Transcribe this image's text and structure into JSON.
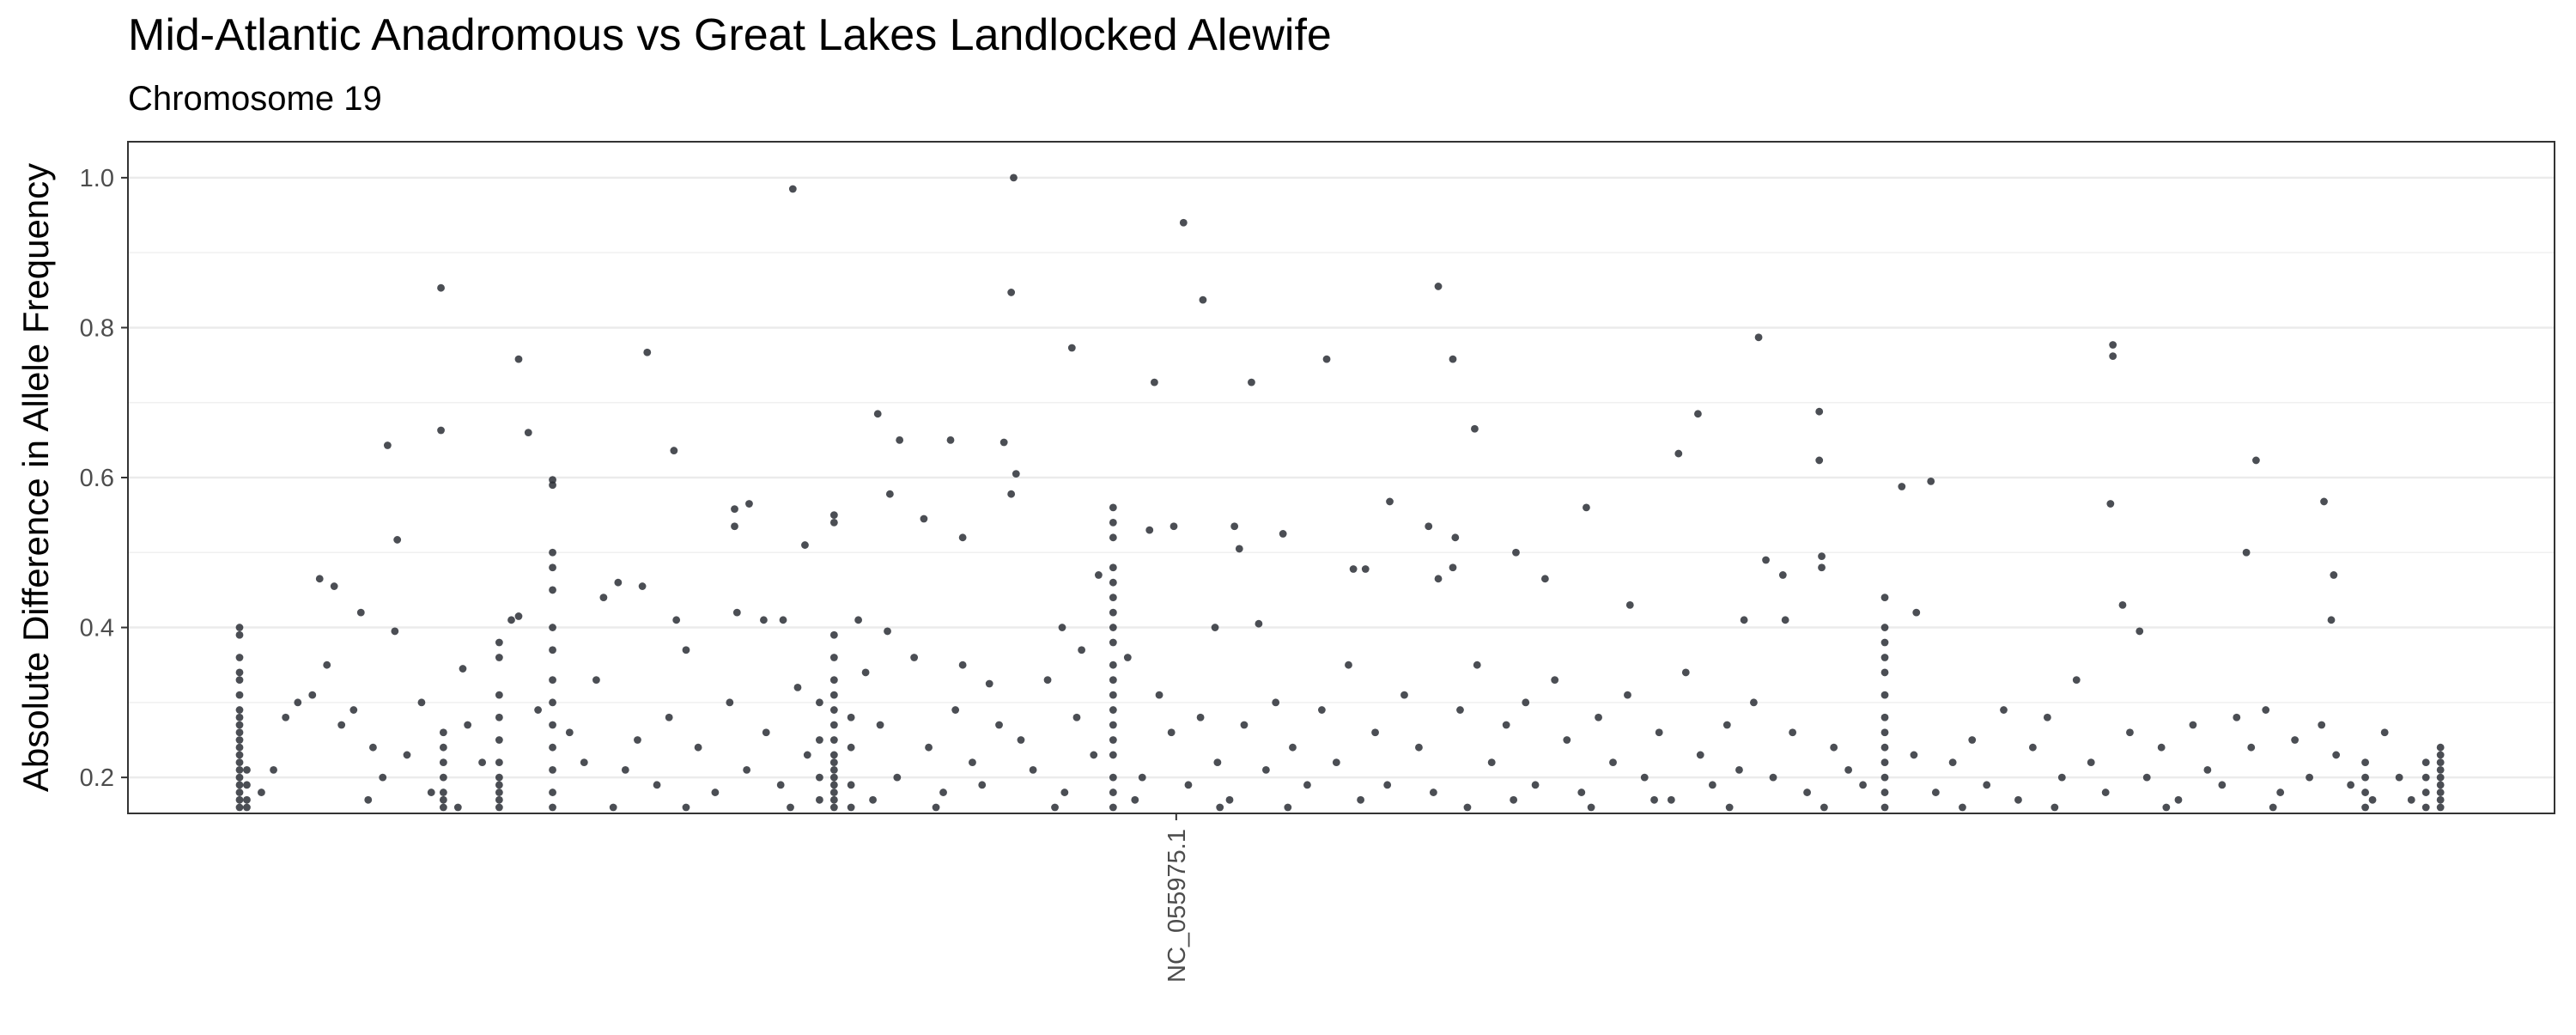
{
  "chart_data": {
    "type": "scatter",
    "title": "Mid-Atlantic Anadromous vs Great Lakes Landlocked Alewife",
    "subtitle": "Chromosome 19",
    "y_label": "Absolute Difference in Allele Frequency",
    "color": "#2b2f36",
    "grid": true,
    "minor_grid": true,
    "xlim": [
      0,
      100
    ],
    "xticks": [
      {
        "value": 43.2,
        "label": "NC_055975.1"
      }
    ],
    "ylim": [
      0.152,
      1.048
    ],
    "yticks": [
      0.2,
      0.4,
      0.6,
      0.8,
      {
        "value": 1,
        "label": "1.0"
      }
    ],
    "x": [
      4.6,
      4.6,
      4.6,
      4.6,
      4.6,
      4.6,
      4.6,
      4.6,
      4.6,
      4.6,
      4.6,
      4.6,
      4.6,
      4.6,
      4.6,
      4.6,
      4.6,
      4.6,
      4.6,
      4.6,
      4.9,
      4.9,
      4.9,
      4.9,
      13.0,
      13.0,
      13.0,
      13.0,
      13.0,
      13.0,
      13.0,
      15.3,
      15.3,
      15.3,
      15.3,
      15.3,
      15.3,
      15.3,
      15.3,
      15.3,
      15.3,
      15.3,
      17.5,
      17.5,
      17.5,
      17.5,
      17.5,
      17.5,
      17.5,
      17.5,
      17.5,
      17.5,
      17.5,
      17.5,
      29.1,
      29.1,
      29.1,
      29.1,
      29.1,
      29.1,
      29.1,
      29.1,
      29.1,
      29.1,
      29.1,
      29.1,
      29.1,
      29.1,
      29.1,
      28.5,
      28.5,
      28.5,
      28.5,
      29.8,
      29.8,
      29.8,
      29.8,
      40.6,
      40.6,
      40.6,
      40.6,
      40.6,
      40.6,
      40.6,
      40.6,
      40.6,
      40.6,
      40.6,
      40.6,
      40.6,
      40.6,
      40.6,
      40.6,
      40.6,
      40.6,
      40.6,
      72.4,
      72.4,
      72.4,
      72.4,
      72.4,
      72.4,
      72.4,
      72.4,
      72.4,
      72.4,
      72.4,
      72.4,
      72.4,
      92.2,
      92.2,
      92.2,
      92.2,
      95.3,
      95.3,
      95.3,
      95.3,
      95.3,
      95.3,
      95.3,
      95.3,
      95.3,
      94.7,
      94.7,
      94.7,
      94.7,
      36.5,
      27.4,
      43.5,
      12.9,
      36.4,
      54.0,
      44.3,
      67.2,
      81.8,
      81.8,
      38.9,
      21.4,
      16.1,
      49.4,
      54.6,
      42.3,
      46.3,
      69.7,
      30.9,
      64.7,
      55.5,
      12.9,
      16.5,
      31.8,
      33.9,
      36.1,
      10.7,
      22.5,
      63.9,
      87.7,
      69.7,
      36.6,
      17.5,
      17.5,
      74.3,
      73.1,
      36.4,
      31.4,
      90.5,
      52.0,
      81.7,
      25.6,
      60.1,
      25.0,
      25.0,
      29.1,
      29.1,
      32.8,
      11.1,
      27.9,
      47.6,
      90.9,
      87.3,
      57.2,
      58.4,
      7.9,
      8.5,
      34.4,
      45.6,
      45.8,
      43.1,
      42.1,
      50.5,
      51.0,
      53.6,
      54.7,
      54.6,
      54.0,
      67.5,
      68.2,
      69.8,
      69.8,
      73.7,
      82.9,
      90.8,
      82.2,
      61.9,
      66.6,
      68.3,
      16.1,
      15.8,
      21.2,
      22.6,
      20.2,
      19.6,
      13.8,
      9.6,
      11.0,
      40.0,
      35.5,
      39.3,
      44.8,
      46.6,
      30.1,
      31.3,
      26.2,
      27.0,
      25.1,
      23.0,
      34.4,
      38.5,
      6.5,
      7.0,
      7.6,
      8.2,
      8.8,
      9.3,
      10.1,
      10.5,
      11.5,
      12.1,
      14.0,
      14.6,
      16.9,
      18.2,
      18.8,
      19.3,
      20.5,
      21.0,
      21.8,
      22.3,
      23.5,
      24.2,
      24.8,
      25.5,
      26.3,
      26.9,
      27.6,
      28.0,
      30.4,
      31.0,
      31.7,
      32.4,
      33.0,
      33.6,
      34.1,
      34.8,
      35.2,
      35.9,
      36.8,
      37.3,
      37.9,
      38.6,
      39.1,
      39.8,
      41.2,
      41.8,
      42.5,
      43.0,
      43.7,
      44.2,
      44.9,
      45.4,
      46.0,
      46.9,
      47.3,
      48.0,
      48.6,
      49.2,
      49.8,
      50.3,
      51.4,
      51.9,
      52.6,
      53.2,
      53.8,
      54.9,
      55.6,
      56.2,
      56.8,
      57.6,
      58.0,
      58.8,
      59.3,
      59.9,
      60.6,
      61.2,
      61.8,
      62.5,
      63.1,
      63.6,
      64.2,
      64.8,
      65.3,
      65.9,
      66.4,
      67.0,
      67.8,
      68.6,
      69.2,
      70.3,
      70.9,
      71.5,
      73.6,
      74.5,
      75.2,
      76.0,
      76.6,
      77.3,
      77.9,
      78.5,
      79.1,
      79.7,
      80.3,
      80.9,
      81.5,
      82.5,
      83.2,
      83.8,
      84.5,
      85.1,
      85.7,
      86.3,
      86.9,
      87.5,
      88.1,
      88.7,
      89.3,
      89.9,
      90.4,
      91.0,
      91.6,
      93.0,
      93.6,
      94.1,
      5.5,
      6.0,
      9.9,
      12.5,
      13.6,
      20.0,
      23.0,
      27.3,
      30.7,
      33.3,
      38.2,
      41.5,
      45.0,
      47.8,
      50.8,
      55.2,
      57.1,
      60.3,
      62.9,
      66.0,
      69.9,
      75.6,
      79.4,
      84.0,
      88.4,
      92.5
    ],
    "values": [
      0.4,
      0.39,
      0.36,
      0.34,
      0.33,
      0.31,
      0.29,
      0.28,
      0.27,
      0.26,
      0.25,
      0.24,
      0.23,
      0.22,
      0.21,
      0.2,
      0.19,
      0.18,
      0.17,
      0.16,
      0.21,
      0.19,
      0.17,
      0.16,
      0.26,
      0.24,
      0.22,
      0.2,
      0.18,
      0.17,
      0.16,
      0.38,
      0.36,
      0.31,
      0.28,
      0.25,
      0.22,
      0.2,
      0.19,
      0.18,
      0.17,
      0.16,
      0.5,
      0.48,
      0.45,
      0.4,
      0.37,
      0.33,
      0.3,
      0.27,
      0.24,
      0.21,
      0.18,
      0.16,
      0.39,
      0.36,
      0.33,
      0.31,
      0.29,
      0.27,
      0.25,
      0.23,
      0.22,
      0.21,
      0.2,
      0.19,
      0.18,
      0.17,
      0.16,
      0.3,
      0.25,
      0.2,
      0.17,
      0.28,
      0.24,
      0.19,
      0.16,
      0.56,
      0.54,
      0.52,
      0.48,
      0.46,
      0.44,
      0.42,
      0.4,
      0.38,
      0.35,
      0.33,
      0.31,
      0.29,
      0.27,
      0.25,
      0.23,
      0.2,
      0.18,
      0.16,
      0.44,
      0.4,
      0.38,
      0.36,
      0.34,
      0.31,
      0.28,
      0.26,
      0.24,
      0.22,
      0.2,
      0.18,
      0.16,
      0.22,
      0.2,
      0.18,
      0.16,
      0.24,
      0.23,
      0.22,
      0.21,
      0.2,
      0.19,
      0.18,
      0.17,
      0.16,
      0.22,
      0.2,
      0.18,
      0.16,
      1.0,
      0.985,
      0.94,
      0.853,
      0.847,
      0.855,
      0.837,
      0.787,
      0.777,
      0.762,
      0.773,
      0.767,
      0.758,
      0.758,
      0.758,
      0.727,
      0.727,
      0.688,
      0.685,
      0.685,
      0.665,
      0.663,
      0.66,
      0.65,
      0.65,
      0.647,
      0.643,
      0.636,
      0.632,
      0.623,
      0.623,
      0.605,
      0.597,
      0.59,
      0.595,
      0.588,
      0.578,
      0.578,
      0.568,
      0.568,
      0.565,
      0.565,
      0.56,
      0.558,
      0.535,
      0.55,
      0.54,
      0.545,
      0.517,
      0.51,
      0.525,
      0.47,
      0.5,
      0.5,
      0.465,
      0.465,
      0.455,
      0.52,
      0.535,
      0.505,
      0.535,
      0.53,
      0.478,
      0.478,
      0.535,
      0.52,
      0.48,
      0.465,
      0.49,
      0.47,
      0.495,
      0.48,
      0.42,
      0.395,
      0.41,
      0.43,
      0.43,
      0.41,
      0.41,
      0.415,
      0.41,
      0.455,
      0.41,
      0.46,
      0.44,
      0.345,
      0.42,
      0.395,
      0.47,
      0.325,
      0.37,
      0.4,
      0.405,
      0.41,
      0.395,
      0.41,
      0.41,
      0.42,
      0.37,
      0.35,
      0.4,
      0.28,
      0.3,
      0.31,
      0.35,
      0.27,
      0.29,
      0.24,
      0.2,
      0.23,
      0.3,
      0.27,
      0.22,
      0.29,
      0.26,
      0.22,
      0.33,
      0.21,
      0.25,
      0.19,
      0.28,
      0.24,
      0.18,
      0.3,
      0.21,
      0.26,
      0.19,
      0.32,
      0.23,
      0.34,
      0.27,
      0.2,
      0.36,
      0.24,
      0.18,
      0.29,
      0.22,
      0.19,
      0.27,
      0.25,
      0.21,
      0.33,
      0.18,
      0.28,
      0.23,
      0.36,
      0.2,
      0.31,
      0.26,
      0.19,
      0.28,
      0.22,
      0.17,
      0.27,
      0.21,
      0.3,
      0.24,
      0.19,
      0.29,
      0.22,
      0.35,
      0.26,
      0.19,
      0.31,
      0.24,
      0.18,
      0.29,
      0.35,
      0.22,
      0.27,
      0.3,
      0.19,
      0.33,
      0.25,
      0.18,
      0.28,
      0.22,
      0.31,
      0.2,
      0.26,
      0.17,
      0.34,
      0.23,
      0.19,
      0.27,
      0.21,
      0.3,
      0.2,
      0.26,
      0.18,
      0.24,
      0.21,
      0.19,
      0.23,
      0.18,
      0.22,
      0.25,
      0.19,
      0.29,
      0.17,
      0.24,
      0.28,
      0.2,
      0.33,
      0.22,
      0.18,
      0.26,
      0.2,
      0.24,
      0.17,
      0.27,
      0.21,
      0.19,
      0.28,
      0.24,
      0.29,
      0.18,
      0.25,
      0.2,
      0.27,
      0.23,
      0.19,
      0.26,
      0.2,
      0.17,
      0.18,
      0.21,
      0.17,
      0.18,
      0.16,
      0.16,
      0.16,
      0.16,
      0.17,
      0.16,
      0.16,
      0.17,
      0.16,
      0.16,
      0.17,
      0.16,
      0.17,
      0.16,
      0.17,
      0.16,
      0.16,
      0.16,
      0.16,
      0.16,
      0.16,
      0.17
    ]
  }
}
